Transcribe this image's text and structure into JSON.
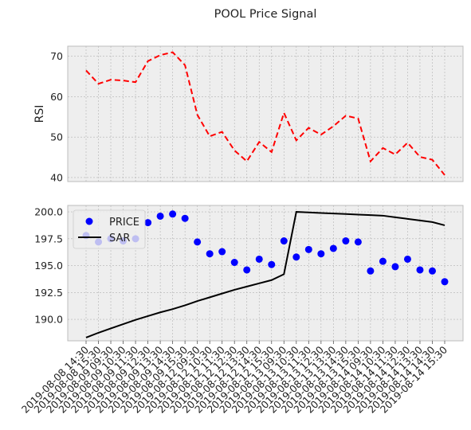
{
  "chart_data": [
    {
      "type": "line",
      "title": "POOL Price Signal",
      "ylabel": "RSI",
      "xlabel": "",
      "ylim": [
        39,
        72.5
      ],
      "yticks": [
        40,
        50,
        60,
        70
      ],
      "grid": true,
      "series": [
        {
          "name": "RSI",
          "style": "dashed",
          "color": "#ff0000",
          "values": [
            66.5,
            63.2,
            64.2,
            64.0,
            63.6,
            68.8,
            70.3,
            71.0,
            67.8,
            55.5,
            50.2,
            51.3,
            46.7,
            44.0,
            48.8,
            46.3,
            56.0,
            49.2,
            52.3,
            50.6,
            52.7,
            55.3,
            54.6,
            44.0,
            47.3,
            45.7,
            48.6,
            45.1,
            44.4,
            40.6
          ]
        }
      ]
    },
    {
      "type": "line",
      "ylabel": "",
      "xlabel": "",
      "ylim": [
        188,
        200.6
      ],
      "yticks": [
        190.0,
        192.5,
        195.0,
        197.5,
        200.0
      ],
      "grid": true,
      "legend_position": "top-left",
      "x": [
        "2019-08-08 14:30",
        "2019-08-08 15:30",
        "2019-08-09 09:30",
        "2019-08-09 10:30",
        "2019-08-09 11:30",
        "2019-08-09 12:30",
        "2019-08-09 13:30",
        "2019-08-09 14:30",
        "2019-08-09 15:30",
        "2019-08-12 09:30",
        "2019-08-12 10:30",
        "2019-08-12 11:30",
        "2019-08-12 12:30",
        "2019-08-12 13:30",
        "2019-08-12 14:30",
        "2019-08-12 15:30",
        "2019-08-13 09:30",
        "2019-08-13 10:30",
        "2019-08-13 11:30",
        "2019-08-13 12:30",
        "2019-08-13 13:30",
        "2019-08-13 14:30",
        "2019-08-13 15:30",
        "2019-08-14 09:30",
        "2019-08-14 10:30",
        "2019-08-14 11:30",
        "2019-08-14 12:30",
        "2019-08-14 13:30",
        "2019-08-14 14:30",
        "2019-08-14 15:30"
      ],
      "series": [
        {
          "name": "PRICE",
          "style": "scatter",
          "color": "#0000ff",
          "values": [
            197.8,
            197.2,
            197.5,
            197.3,
            197.5,
            199.0,
            199.6,
            199.8,
            199.4,
            197.2,
            196.1,
            196.3,
            195.3,
            194.6,
            195.6,
            195.1,
            197.3,
            195.8,
            196.5,
            196.1,
            196.6,
            197.3,
            197.2,
            194.5,
            195.4,
            194.9,
            195.6,
            194.6,
            194.5,
            193.5
          ]
        },
        {
          "name": "SAR",
          "style": "solid",
          "color": "#000000",
          "values": [
            188.3,
            188.75,
            189.15,
            189.55,
            189.95,
            190.3,
            190.65,
            190.95,
            191.3,
            191.7,
            192.05,
            192.4,
            192.75,
            193.05,
            193.35,
            193.65,
            194.2,
            200.0,
            199.95,
            199.9,
            199.85,
            199.8,
            199.75,
            199.7,
            199.65,
            199.5,
            199.35,
            199.2,
            199.05,
            198.75
          ]
        }
      ]
    }
  ]
}
